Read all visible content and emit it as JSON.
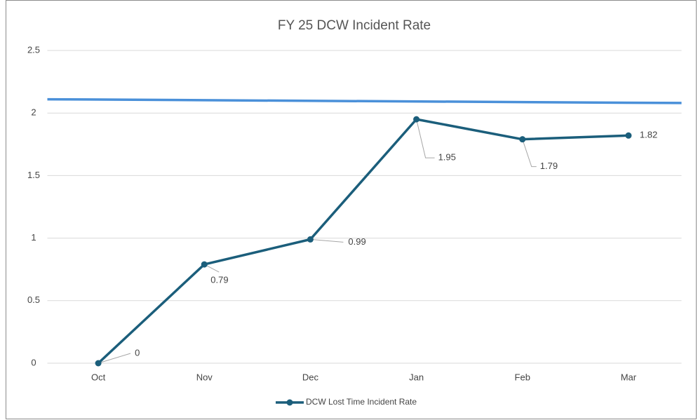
{
  "chart_data": {
    "type": "line",
    "title": "FY 25 DCW Incident Rate",
    "categories": [
      "Oct",
      "Nov",
      "Dec",
      "Jan",
      "Feb",
      "Mar"
    ],
    "series": [
      {
        "name": "DCW Lost Time Incident Rate",
        "color": "#1b5e7b",
        "values": [
          0,
          0.79,
          0.99,
          1.95,
          1.79,
          1.82
        ]
      }
    ],
    "target_line": {
      "color": "#4a90d9",
      "values": [
        2.11,
        2.08
      ]
    },
    "ylim": [
      0,
      2.5
    ],
    "yticks": [
      0,
      0.5,
      1,
      1.5,
      2,
      2.5
    ],
    "grid": true,
    "legend": "bottom"
  }
}
